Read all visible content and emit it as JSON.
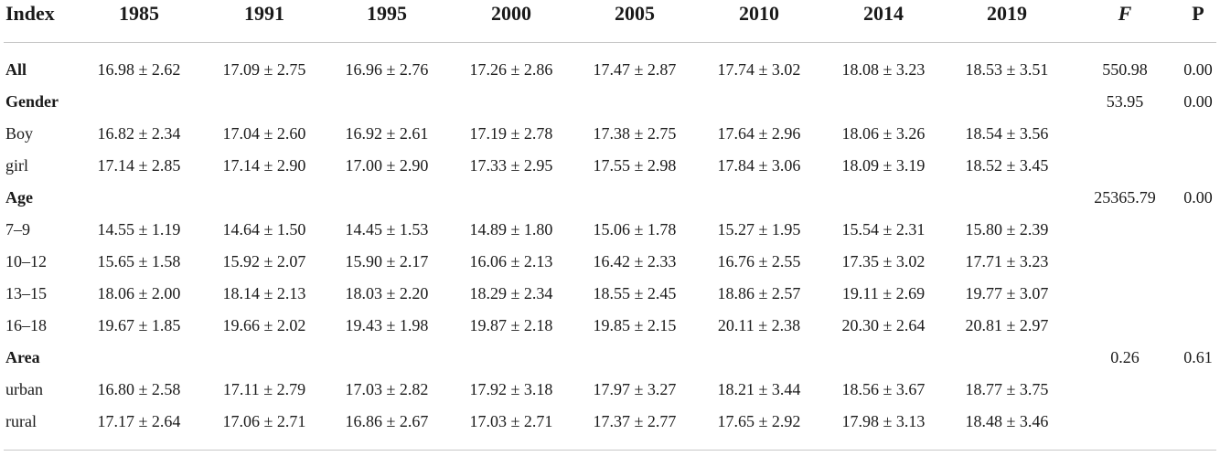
{
  "header": {
    "index": "Index",
    "years": [
      "1985",
      "1991",
      "1995",
      "2000",
      "2005",
      "2010",
      "2014",
      "2019"
    ],
    "f": "F",
    "p": "P"
  },
  "rows": [
    {
      "label": "All",
      "bold": true,
      "cells": [
        "16.98 ± 2.62",
        "17.09 ± 2.75",
        "16.96 ± 2.76",
        "17.26 ± 2.86",
        "17.47 ± 2.87",
        "17.74 ± 3.02",
        "18.08 ± 3.23",
        "18.53 ± 3.51"
      ],
      "f": "550.98",
      "p": "0.00"
    },
    {
      "label": "Gender",
      "bold": true,
      "cells": [
        "",
        "",
        "",
        "",
        "",
        "",
        "",
        ""
      ],
      "f": "53.95",
      "p": "0.00"
    },
    {
      "label": "Boy",
      "bold": false,
      "cells": [
        "16.82 ± 2.34",
        "17.04 ± 2.60",
        "16.92 ± 2.61",
        "17.19 ± 2.78",
        "17.38 ± 2.75",
        "17.64 ± 2.96",
        "18.06 ± 3.26",
        "18.54 ± 3.56"
      ],
      "f": "",
      "p": ""
    },
    {
      "label": "girl",
      "bold": false,
      "cells": [
        "17.14 ± 2.85",
        "17.14 ± 2.90",
        "17.00 ± 2.90",
        "17.33 ± 2.95",
        "17.55 ± 2.98",
        "17.84 ± 3.06",
        "18.09 ± 3.19",
        "18.52 ± 3.45"
      ],
      "f": "",
      "p": ""
    },
    {
      "label": "Age",
      "bold": true,
      "cells": [
        "",
        "",
        "",
        "",
        "",
        "",
        "",
        ""
      ],
      "f": "25365.79",
      "p": "0.00"
    },
    {
      "label": "7–9",
      "bold": false,
      "cells": [
        "14.55 ± 1.19",
        "14.64 ± 1.50",
        "14.45 ± 1.53",
        "14.89 ± 1.80",
        "15.06 ± 1.78",
        "15.27 ± 1.95",
        "15.54 ± 2.31",
        "15.80 ± 2.39"
      ],
      "f": "",
      "p": ""
    },
    {
      "label": "10–12",
      "bold": false,
      "cells": [
        "15.65 ± 1.58",
        "15.92 ± 2.07",
        "15.90 ± 2.17",
        "16.06 ± 2.13",
        "16.42 ± 2.33",
        "16.76 ± 2.55",
        "17.35 ± 3.02",
        "17.71 ± 3.23"
      ],
      "f": "",
      "p": ""
    },
    {
      "label": "13–15",
      "bold": false,
      "cells": [
        "18.06 ± 2.00",
        "18.14 ± 2.13",
        "18.03 ± 2.20",
        "18.29 ± 2.34",
        "18.55 ± 2.45",
        "18.86 ± 2.57",
        "19.11 ± 2.69",
        "19.77 ± 3.07"
      ],
      "f": "",
      "p": ""
    },
    {
      "label": "16–18",
      "bold": false,
      "cells": [
        "19.67 ± 1.85",
        "19.66 ± 2.02",
        "19.43 ± 1.98",
        "19.87 ± 2.18",
        "19.85 ± 2.15",
        "20.11 ± 2.38",
        "20.30 ± 2.64",
        "20.81 ± 2.97"
      ],
      "f": "",
      "p": ""
    },
    {
      "label": "Area",
      "bold": true,
      "cells": [
        "",
        "",
        "",
        "",
        "",
        "",
        "",
        ""
      ],
      "f": "0.26",
      "p": "0.61"
    },
    {
      "label": "urban",
      "bold": false,
      "cells": [
        "16.80 ± 2.58",
        "17.11 ± 2.79",
        "17.03 ± 2.82",
        "17.92 ± 3.18",
        "17.97 ± 3.27",
        "18.21 ± 3.44",
        "18.56 ± 3.67",
        "18.77 ± 3.75"
      ],
      "f": "",
      "p": ""
    },
    {
      "label": "rural",
      "bold": false,
      "cells": [
        "17.17 ± 2.64",
        "17.06 ± 2.71",
        "16.86 ± 2.67",
        "17.03 ± 2.71",
        "17.37 ± 2.77",
        "17.65 ± 2.92",
        "17.98 ± 3.13",
        "18.48 ± 3.46"
      ],
      "f": "",
      "p": ""
    }
  ]
}
